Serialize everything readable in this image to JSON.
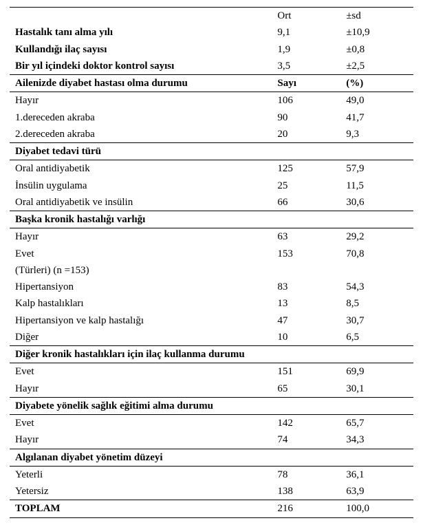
{
  "header": {
    "col2": "Ort",
    "col3": "±sd"
  },
  "stats": [
    {
      "label": "Hastalık tanı alma yılı",
      "a": "9,1",
      "b": "±10,9"
    },
    {
      "label": "Kullandığı ilaç sayısı",
      "a": "1,9",
      "b": "±0,8"
    },
    {
      "label": "Bir yıl içindeki doktor kontrol sayısı",
      "a": "3,5",
      "b": "±2,5"
    }
  ],
  "section_family": {
    "title": "Ailenizde diyabet hastası olma durumu",
    "col2": "Sayı",
    "col3": "(%)",
    "rows": [
      {
        "label": "Hayır",
        "a": "106",
        "b": "49,0"
      },
      {
        "label": "1.dereceden akraba",
        "a": "90",
        "b": "41,7"
      },
      {
        "label": "2.dereceden akraba",
        "a": "20",
        "b": "9,3"
      }
    ]
  },
  "section_treatment": {
    "title": "Diyabet tedavi türü",
    "rows": [
      {
        "label": "Oral antidiyabetik",
        "a": "125",
        "b": "57,9"
      },
      {
        "label": "İnsülin uygulama",
        "a": "25",
        "b": "11,5"
      },
      {
        "label": "Oral  antidiyabetik ve insülin",
        "a": "66",
        "b": "30,6"
      }
    ]
  },
  "section_chronic": {
    "title": "Başka kronik hastalığı varlığı",
    "rows": [
      {
        "label": "Hayır",
        "a": "63",
        "b": "29,2"
      },
      {
        "label": "Evet",
        "a": "153",
        "b": "70,8"
      },
      {
        "label": " (Türleri) (n =153)",
        "a": "",
        "b": ""
      },
      {
        "label": "Hipertansiyon",
        "a": "83",
        "b": "54,3"
      },
      {
        "label": "Kalp hastalıkları",
        "a": "13",
        "b": "8,5"
      },
      {
        "label": "Hipertansiyon ve kalp hastalığı",
        "a": "47",
        "b": "30,7"
      },
      {
        "label": "Diğer",
        "a": "10",
        "b": "6,5"
      }
    ]
  },
  "section_othermed": {
    "title": "Diğer kronik hastalıkları için ilaç kullanma durumu",
    "rows": [
      {
        "label": "Evet",
        "a": "151",
        "b": "69,9"
      },
      {
        "label": "Hayır",
        "a": "65",
        "b": "30,1"
      }
    ]
  },
  "section_edu": {
    "title": "Diyabete yönelik sağlık eğitimi alma durumu",
    "rows": [
      {
        "label": "Evet",
        "a": "142",
        "b": "65,7"
      },
      {
        "label": "Hayır",
        "a": "74",
        "b": "34,3"
      }
    ]
  },
  "section_mgmt": {
    "title": "Algılanan diyabet yönetim düzeyi",
    "rows": [
      {
        "label": "Yeterli",
        "a": "78",
        "b": "36,1"
      },
      {
        "label": "Yetersiz",
        "a": "138",
        "b": "63,9"
      }
    ]
  },
  "total": {
    "label": "TOPLAM",
    "a": "216",
    "b": "100,0"
  }
}
